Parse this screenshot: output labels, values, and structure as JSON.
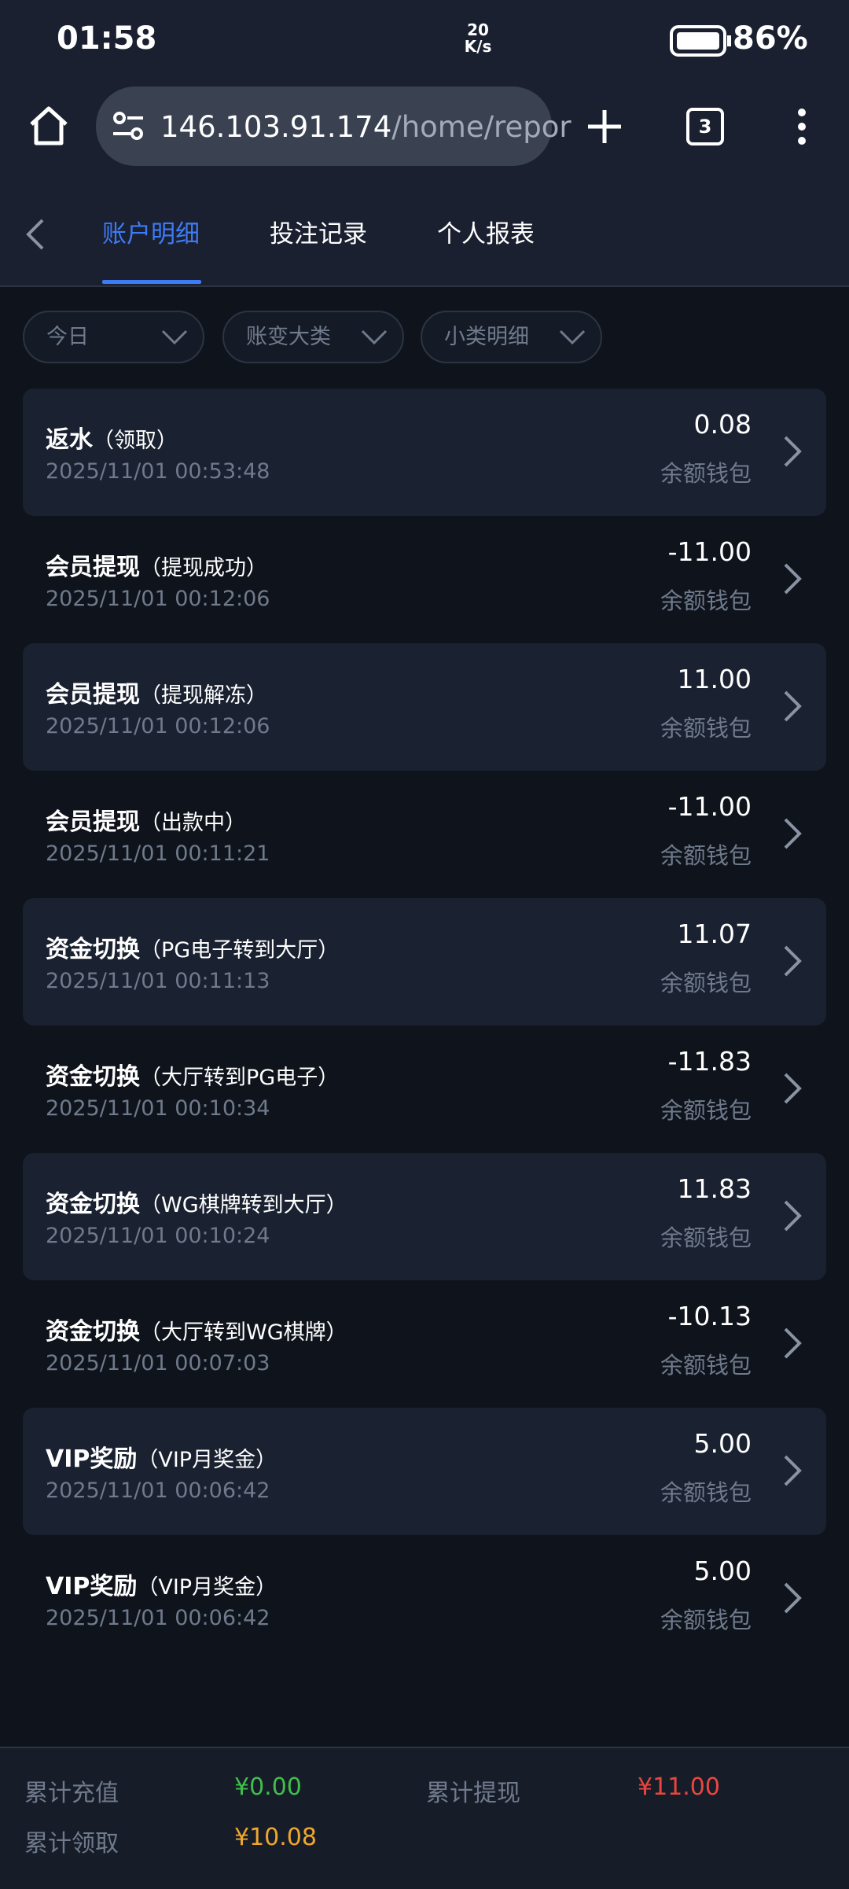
{
  "status_bar": {
    "time": "01:58",
    "speed": "20 K/s",
    "battery": "86%"
  },
  "browser": {
    "host": "146.103.91.174",
    "path": "/home/repor",
    "tabs_count": "3"
  },
  "tabs": [
    "账户明细",
    "投注记录",
    "个人报表"
  ],
  "filters": [
    "今日",
    "账变大类",
    "小类明细"
  ],
  "records": [
    {
      "title": "返水",
      "note": "（领取）",
      "time": "2025/11/01 00:53:48",
      "amount": "0.08",
      "wallet": "余额钱包"
    },
    {
      "title": "会员提现",
      "note": "（提现成功）",
      "time": "2025/11/01 00:12:06",
      "amount": "-11.00",
      "wallet": "余额钱包"
    },
    {
      "title": "会员提现",
      "note": "（提现解冻）",
      "time": "2025/11/01 00:12:06",
      "amount": "11.00",
      "wallet": "余额钱包"
    },
    {
      "title": "会员提现",
      "note": "（出款中）",
      "time": "2025/11/01 00:11:21",
      "amount": "-11.00",
      "wallet": "余额钱包"
    },
    {
      "title": "资金切换",
      "note": "（PG电子转到大厅）",
      "time": "2025/11/01 00:11:13",
      "amount": "11.07",
      "wallet": "余额钱包"
    },
    {
      "title": "资金切换",
      "note": "（大厅转到PG电子）",
      "time": "2025/11/01 00:10:34",
      "amount": "-11.83",
      "wallet": "余额钱包"
    },
    {
      "title": "资金切换",
      "note": "（WG棋牌转到大厅）",
      "time": "2025/11/01 00:10:24",
      "amount": "11.83",
      "wallet": "余额钱包"
    },
    {
      "title": "资金切换",
      "note": "（大厅转到WG棋牌）",
      "time": "2025/11/01 00:07:03",
      "amount": "-10.13",
      "wallet": "余额钱包"
    },
    {
      "title": "VIP奖励",
      "note": "（VIP月奖金）",
      "time": "2025/11/01 00:06:42",
      "amount": "5.00",
      "wallet": "余额钱包"
    },
    {
      "title": "VIP奖励",
      "note": "（VIP月奖金）",
      "time": "2025/11/01 00:06:42",
      "amount": "5.00",
      "wallet": "余额钱包"
    }
  ],
  "summary": {
    "recharge_label": "累计充值",
    "recharge": "¥0.00",
    "withdraw_label": "累计提现",
    "withdraw": "¥11.00",
    "claim_label": "累计领取",
    "claim": "¥10.08"
  }
}
